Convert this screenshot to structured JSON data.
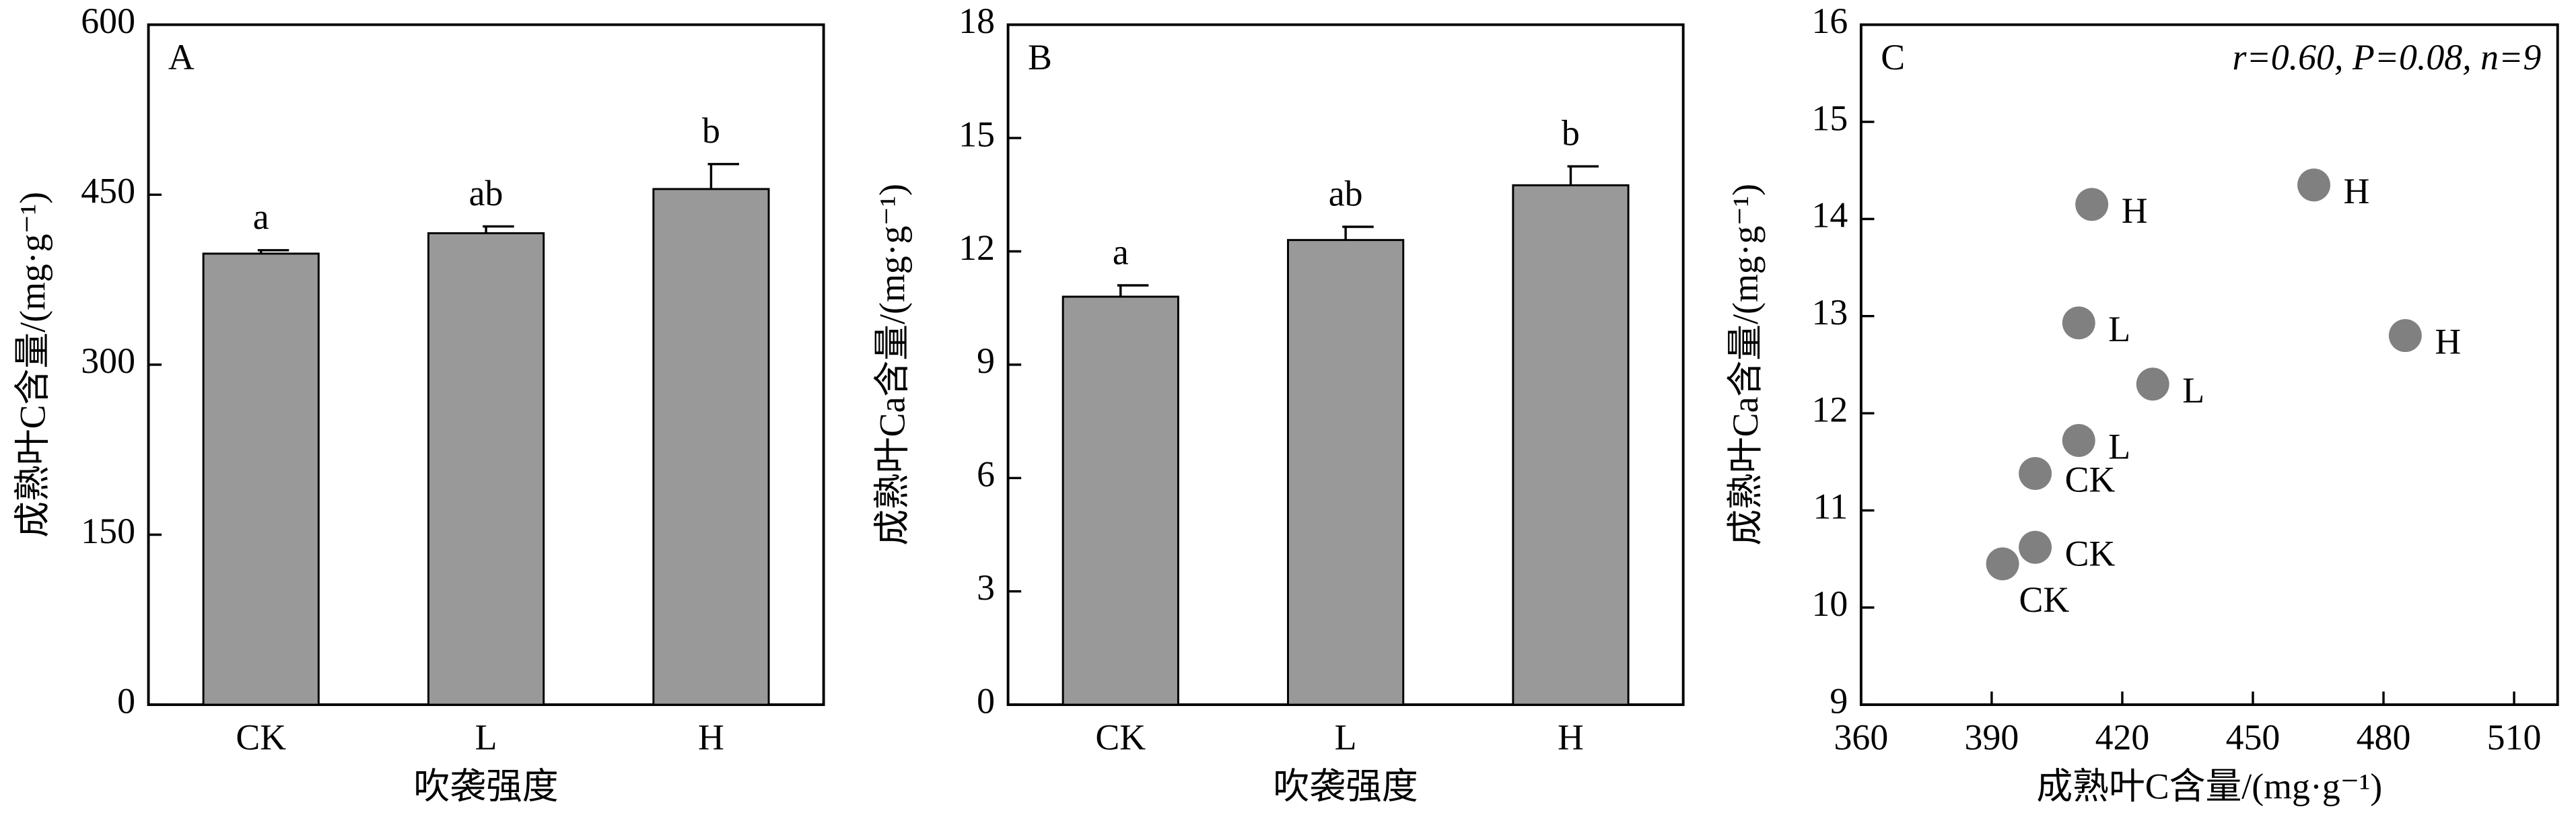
{
  "chart_data": [
    {
      "type": "bar",
      "panel_label": "A",
      "ylabel": "成熟叶C含量/(mg·g⁻¹)",
      "xlabel": "吹袭强度",
      "categories": [
        "CK",
        "L",
        "H"
      ],
      "values": [
        398,
        416,
        455
      ],
      "errors": [
        3,
        6,
        22
      ],
      "letters": [
        "a",
        "ab",
        "b"
      ],
      "color": "#999999",
      "ylim": [
        0,
        600
      ],
      "yticks": [
        0,
        150,
        300,
        450,
        600
      ]
    },
    {
      "type": "bar",
      "panel_label": "B",
      "ylabel": "成熟叶Ca含量/(mg·g⁻¹)",
      "xlabel": "吹袭强度",
      "categories": [
        "CK",
        "L",
        "H"
      ],
      "values": [
        10.8,
        12.3,
        13.75
      ],
      "errors": [
        0.3,
        0.35,
        0.5
      ],
      "letters": [
        "a",
        "ab",
        "b"
      ],
      "color": "#999999",
      "ylim": [
        0,
        18
      ],
      "yticks": [
        0,
        3,
        6,
        9,
        12,
        15,
        18
      ]
    },
    {
      "type": "scatter",
      "panel_label": "C",
      "ylabel": "成熟叶Ca含量/(mg·g⁻¹)",
      "xlabel": "成熟叶C含量/(mg·g⁻¹)",
      "annotation": "r=0.60, P=0.08, n=9",
      "x": [
        392.5,
        400,
        400,
        410,
        427,
        410,
        413,
        464,
        485
      ],
      "values": [
        10.45,
        10.62,
        11.38,
        11.72,
        12.3,
        12.93,
        14.15,
        14.35,
        12.8
      ],
      "point_labels": [
        "CK",
        "CK",
        "CK",
        "L",
        "L",
        "L",
        "H",
        "H",
        "H"
      ],
      "color": "#808080",
      "xlim": [
        360,
        520
      ],
      "xticks": [
        360,
        390,
        420,
        450,
        480,
        510
      ],
      "ylim": [
        9,
        16
      ],
      "yticks": [
        9,
        10,
        11,
        12,
        13,
        14,
        15,
        16
      ]
    }
  ]
}
